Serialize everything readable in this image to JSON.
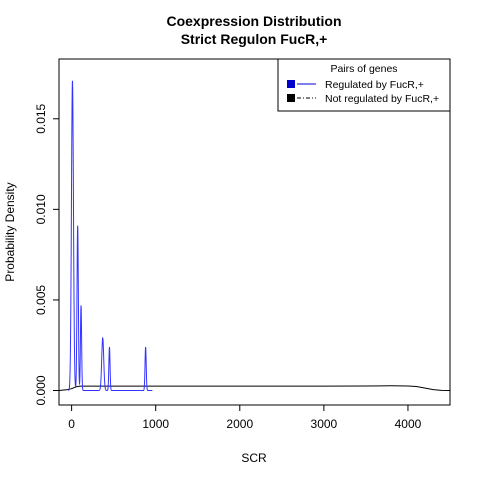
{
  "chart_data": {
    "type": "line",
    "title": "Coexpression Distribution",
    "subtitle": "Strict Regulon FucR,+",
    "xlabel": "SCR",
    "ylabel": "Probability Density",
    "xlim": [
      -150,
      4500
    ],
    "ylim": [
      -0.0008,
      0.0183
    ],
    "x_ticks": [
      0,
      1000,
      2000,
      3000,
      4000
    ],
    "x_tick_labels": [
      "0",
      "1000",
      "2000",
      "3000",
      "4000"
    ],
    "y_ticks": [
      0.0,
      0.005,
      0.01,
      0.015
    ],
    "y_tick_labels": [
      "0.000",
      "0.005",
      "0.010",
      "0.015"
    ],
    "legend": {
      "title": "Pairs of genes",
      "position": "top-right",
      "entries": [
        {
          "label": "Regulated by  FucR,+",
          "color": "#0000cc",
          "line": "solid"
        },
        {
          "label": "Not regulated by  FucR,+",
          "color": "#000000",
          "line": "dotdash"
        }
      ]
    },
    "series": [
      {
        "name": "Regulated by  FucR,+",
        "color": "#3333ff",
        "peaks": [
          {
            "x": 10,
            "height": 0.0171,
            "width": 12
          },
          {
            "x": 72,
            "height": 0.0091,
            "width": 8
          },
          {
            "x": 112,
            "height": 0.0047,
            "width": 7
          },
          {
            "x": 370,
            "height": 0.0029,
            "width": 12
          },
          {
            "x": 450,
            "height": 0.0024,
            "width": 7
          },
          {
            "x": 880,
            "height": 0.0024,
            "width": 7
          }
        ],
        "baseline": 0.0
      },
      {
        "name": "Not regulated by  FucR,+",
        "color": "#000000",
        "points": [
          [
            -150,
            0.0
          ],
          [
            -50,
            5e-05
          ],
          [
            0,
            0.0001
          ],
          [
            50,
            0.0002
          ],
          [
            100,
            0.00024
          ],
          [
            200,
            0.00024
          ],
          [
            500,
            0.00024
          ],
          [
            1000,
            0.00024
          ],
          [
            1500,
            0.00024
          ],
          [
            2000,
            0.00024
          ],
          [
            2500,
            0.00024
          ],
          [
            3000,
            0.00024
          ],
          [
            3500,
            0.00025
          ],
          [
            3800,
            0.00026
          ],
          [
            4000,
            0.00025
          ],
          [
            4100,
            0.00022
          ],
          [
            4200,
            0.00014
          ],
          [
            4300,
            5e-05
          ],
          [
            4400,
            1e-05
          ],
          [
            4500,
            0.0
          ]
        ]
      }
    ]
  }
}
